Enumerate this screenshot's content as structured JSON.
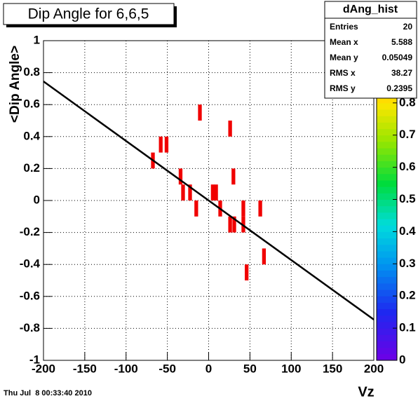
{
  "chart_data": {
    "type": "hist2d",
    "title": "Dip Angle for 6,6,5",
    "x_label": "Vz",
    "y_label": "<Dip Angle>",
    "timestamp": "Thu Jul  8 00:33:40 2010",
    "xlim": [
      -200,
      200
    ],
    "xticks": [
      -200,
      -150,
      -100,
      -50,
      0,
      50,
      100,
      150,
      200
    ],
    "ylim": [
      -1,
      1
    ],
    "yticks": [
      -1,
      -0.8,
      -0.6,
      -0.4,
      -0.2,
      0,
      0.2,
      0.4,
      0.6,
      0.8,
      1
    ],
    "zlim": [
      0,
      1
    ],
    "zticks": [
      0,
      0.1,
      0.2,
      0.3,
      0.4,
      0.5,
      0.6,
      0.7,
      0.8,
      0.9
    ],
    "grid": true,
    "cell_width": 4.5,
    "cell_height": 0.1,
    "cells": {
      "x": [
        -67.5,
        -58,
        -51,
        -34,
        -31,
        -22.5,
        -15,
        -10.6,
        5,
        9,
        14,
        26,
        26,
        31,
        30,
        42,
        42,
        46,
        62.5,
        67
      ],
      "y": [
        0.25,
        0.35,
        0.35,
        0.15,
        0.05,
        0.05,
        -0.05,
        0.55,
        0.05,
        0.05,
        -0.05,
        0.45,
        -0.15,
        -0.15,
        0.15,
        -0.05,
        -0.15,
        -0.45,
        -0.05,
        -0.35
      ],
      "z": [
        1,
        1,
        1,
        1,
        1,
        1,
        1,
        1,
        1,
        1,
        1,
        1,
        1,
        1,
        1,
        1,
        1,
        1,
        1,
        1
      ]
    },
    "fit": {
      "color": "#000000",
      "x": [
        -200,
        200
      ],
      "y": [
        0.745,
        -0.745
      ]
    },
    "stats": {
      "title": "dAng_hist",
      "entries": [
        {
          "label": "Entries",
          "value": 20
        },
        {
          "label": "Mean x",
          "value": 5.588
        },
        {
          "label": "Mean y",
          "value": 0.05049
        },
        {
          "label": "RMS x",
          "value": 38.27
        },
        {
          "label": "RMS y",
          "value": 0.2395
        }
      ]
    }
  }
}
